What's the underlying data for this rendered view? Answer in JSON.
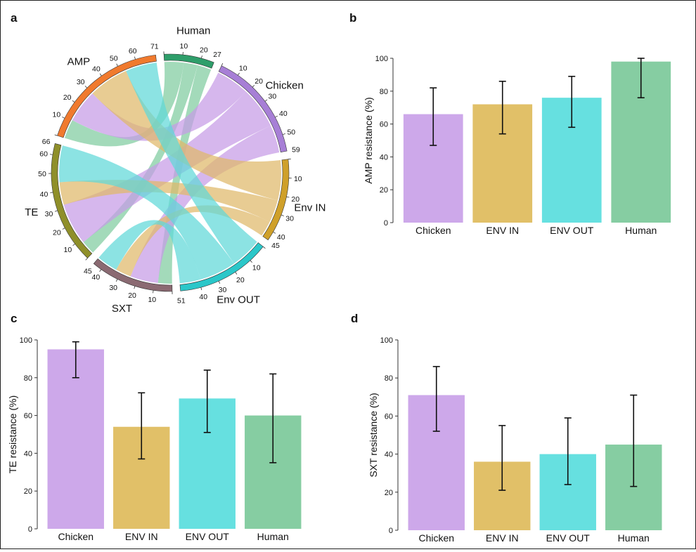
{
  "panels": [
    {
      "letter": "a"
    },
    {
      "letter": "b"
    },
    {
      "letter": "c"
    },
    {
      "letter": "d"
    }
  ],
  "colors": {
    "Human": "#2e9e6a",
    "Chicken": "#a77fd6",
    "Env IN": "#cfa02a",
    "Env OUT": "#2bc7c9",
    "SXT": "#8b6a72",
    "TE": "#8f8f2a",
    "AMP": "#f07a2e"
  },
  "chart_data": [
    {
      "type": "chord",
      "panel": "a",
      "sectors": [
        {
          "name": "Human",
          "total": 27,
          "ticks": [
            10,
            20
          ],
          "color": "#2e9e6a",
          "fill": "#7fcca0"
        },
        {
          "name": "Chicken",
          "total": 59,
          "ticks": [
            10,
            20,
            30,
            40,
            50
          ],
          "color": "#a77fd6",
          "fill": "#c69be6"
        },
        {
          "name": "Env IN",
          "total": 45,
          "ticks": [
            10,
            20,
            30,
            40
          ],
          "color": "#cfa02a",
          "fill": "#dfb86a"
        },
        {
          "name": "Env OUT",
          "total": 51,
          "ticks": [
            10,
            20,
            30,
            40
          ],
          "color": "#2bc7c9",
          "fill": "#5fd8d8"
        },
        {
          "name": "SXT",
          "total": 45,
          "ticks": [
            10,
            20,
            30,
            40
          ],
          "color": "#8b6a72",
          "fill": "#8b6a72"
        },
        {
          "name": "TE",
          "total": 66,
          "ticks": [
            10,
            20,
            30,
            40,
            50,
            60
          ],
          "color": "#8f8f2a",
          "fill": "#8f8f2a"
        },
        {
          "name": "AMP",
          "total": 71,
          "ticks": [
            10,
            20,
            30,
            40,
            50,
            60
          ],
          "color": "#f07a2e",
          "fill": "#f07a2e"
        }
      ],
      "links": [
        {
          "source": "Human",
          "target": "AMP",
          "value": 11
        },
        {
          "source": "Human",
          "target": "TE",
          "value": 8
        },
        {
          "source": "Human",
          "target": "SXT",
          "value": 8
        },
        {
          "source": "Chicken",
          "target": "AMP",
          "value": 19
        },
        {
          "source": "Chicken",
          "target": "TE",
          "value": 24
        },
        {
          "source": "Chicken",
          "target": "SXT",
          "value": 16
        },
        {
          "source": "Env IN",
          "target": "AMP",
          "value": 23
        },
        {
          "source": "Env IN",
          "target": "TE",
          "value": 13
        },
        {
          "source": "Env IN",
          "target": "SXT",
          "value": 9
        },
        {
          "source": "Env OUT",
          "target": "AMP",
          "value": 18
        },
        {
          "source": "Env OUT",
          "target": "TE",
          "value": 21
        },
        {
          "source": "Env OUT",
          "target": "SXT",
          "value": 12
        }
      ]
    },
    {
      "type": "bar",
      "panel": "b",
      "categories": [
        "Chicken",
        "ENV IN",
        "ENV OUT",
        "Human"
      ],
      "values": [
        66,
        72,
        76,
        98
      ],
      "err_low": [
        47,
        54,
        58,
        76
      ],
      "err_high": [
        82,
        86,
        89,
        100
      ],
      "colors": [
        "#cda8ea",
        "#e1c068",
        "#66e0e0",
        "#86cda2"
      ],
      "ylabel": "AMP resistance (%)",
      "ylim": [
        0,
        100
      ],
      "yticks": [
        0,
        20,
        40,
        60,
        80,
        100
      ]
    },
    {
      "type": "bar",
      "panel": "c",
      "categories": [
        "Chicken",
        "ENV IN",
        "ENV OUT",
        "Human"
      ],
      "values": [
        95,
        54,
        69,
        60
      ],
      "err_low": [
        80,
        37,
        51,
        35
      ],
      "err_high": [
        99,
        72,
        84,
        82
      ],
      "colors": [
        "#cda8ea",
        "#e1c068",
        "#66e0e0",
        "#86cda2"
      ],
      "ylabel": "TE resistance (%)",
      "ylim": [
        0,
        100
      ],
      "yticks": [
        0,
        20,
        40,
        60,
        80,
        100
      ]
    },
    {
      "type": "bar",
      "panel": "d",
      "categories": [
        "Chicken",
        "ENV IN",
        "ENV OUT",
        "Human"
      ],
      "values": [
        71,
        36,
        40,
        45
      ],
      "err_low": [
        52,
        21,
        24,
        23
      ],
      "err_high": [
        86,
        55,
        59,
        71
      ],
      "colors": [
        "#cda8ea",
        "#e1c068",
        "#66e0e0",
        "#86cda2"
      ],
      "ylabel": "SXT resistance (%)",
      "ylim": [
        0,
        100
      ],
      "yticks": [
        0,
        20,
        40,
        60,
        80,
        100
      ]
    }
  ]
}
